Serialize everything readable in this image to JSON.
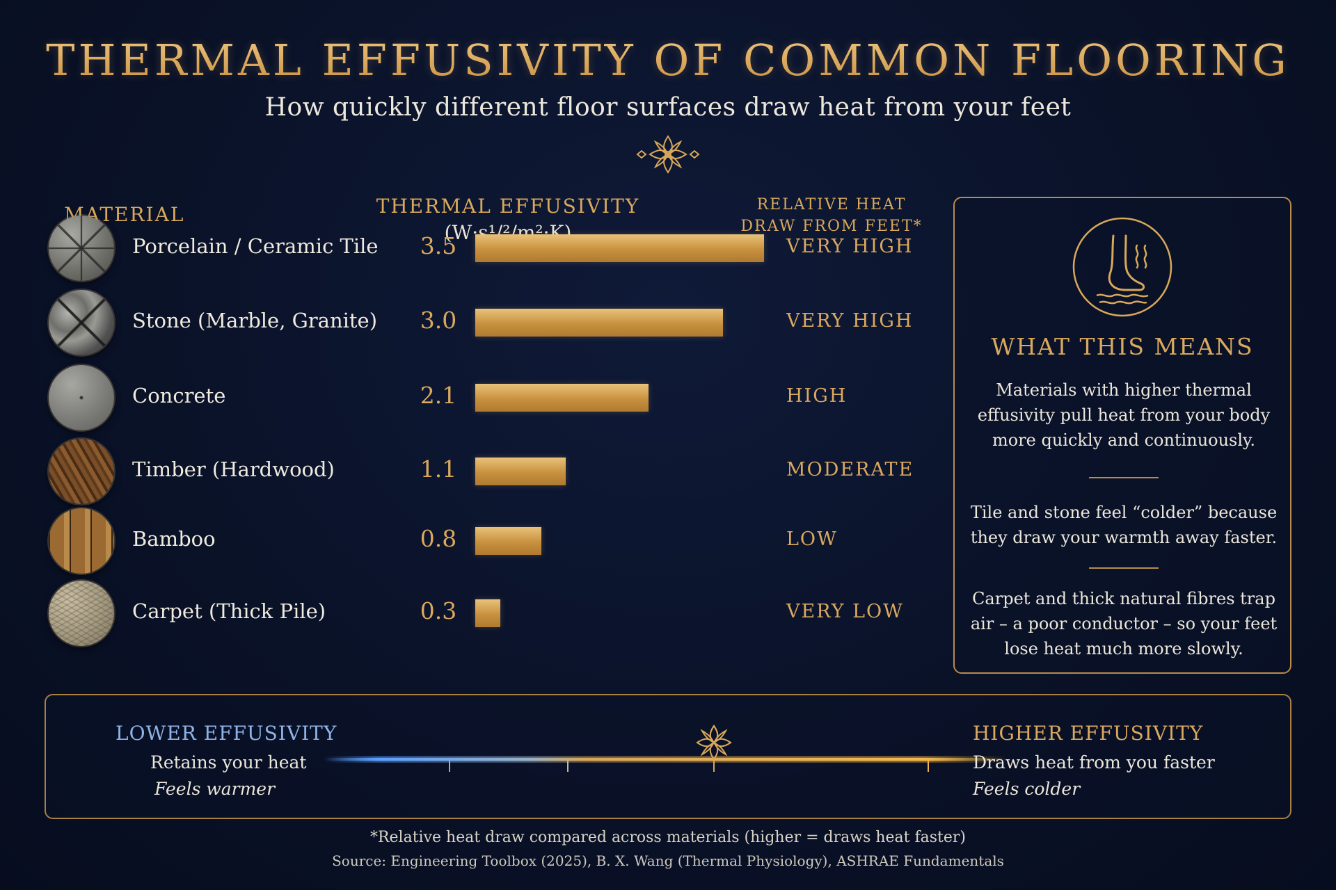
{
  "header": {
    "title": "THERMAL EFFUSIVITY OF COMMON FLOORING",
    "subtitle": "How quickly different floor surfaces draw heat from your feet"
  },
  "columns": {
    "material": "MATERIAL",
    "effusivity": "THERMAL EFFUSIVITY",
    "units": "(W·s¹/²/m²·K)",
    "relative_line1": "RELATIVE HEAT",
    "relative_line2": "DRAW FROM FEET*"
  },
  "chart_data": {
    "type": "bar",
    "orientation": "horizontal",
    "categories": [
      "Porcelain / Ceramic Tile",
      "Stone (Marble, Granite)",
      "Concrete",
      "Timber (Hardwood)",
      "Bamboo",
      "Carpet (Thick Pile)"
    ],
    "values": [
      3.5,
      3.0,
      2.1,
      1.1,
      0.8,
      0.3
    ],
    "value_labels": [
      "3.5",
      "3.0",
      "2.1",
      "1.1",
      "0.8",
      "0.3"
    ],
    "relative_heat_draw": [
      "VERY HIGH",
      "VERY HIGH",
      "HIGH",
      "MODERATE",
      "LOW",
      "VERY LOW"
    ],
    "textures": [
      "tile",
      "stone",
      "concrete",
      "timber",
      "bamboo",
      "carpet"
    ],
    "xlim": [
      0,
      3.5
    ],
    "bar_color": "#d9a85a",
    "grid": false
  },
  "side_panel": {
    "title": "WHAT THIS MEANS",
    "p1_lines": [
      "Materials with higher thermal",
      "effusivity pull heat from your body",
      "more quickly and continuously."
    ],
    "p2_lines": [
      "Tile and stone feel “colder” because",
      "they draw your warmth away faster."
    ],
    "p3_lines": [
      "Carpet and thick natural fibres trap",
      "air – a poor conductor – so your feet",
      "lose heat much more slowly."
    ],
    "icon": "foot-heat-icon"
  },
  "legend": {
    "low_title": "LOWER EFFUSIVITY",
    "low_desc": "Retains your heat",
    "low_feel": "Feels warmer",
    "high_title": "HIGHER EFFUSIVITY",
    "high_desc": "Draws heat from you faster",
    "high_feel": "Feels colder",
    "low_color": "#5aa0ff",
    "high_color": "#f0b04a"
  },
  "footer": {
    "footnote": "*Relative heat draw compared across materials (higher = draws heat faster)",
    "source": "Source: Engineering Toolbox (2025), B. X. Wang (Thermal Physiology), ASHRAE Fundamentals"
  },
  "colors": {
    "background": "#0a1228",
    "gold": "#d9a85a",
    "text": "#ece7db"
  }
}
